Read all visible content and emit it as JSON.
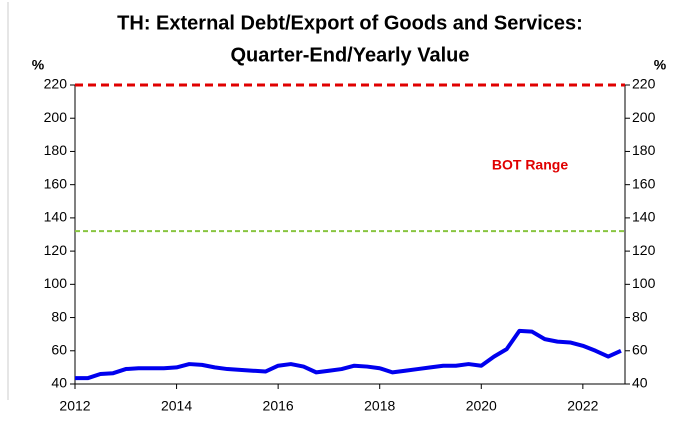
{
  "chart_data": {
    "type": "line",
    "title": [
      "TH: External Debt/Export of Goods and Services:",
      "Quarter-End/Yearly Value"
    ],
    "y_label": "%",
    "y2_label": "%",
    "annotation": "BOT Range",
    "x": [
      2012,
      2012.25,
      2012.5,
      2012.75,
      2013,
      2013.25,
      2013.5,
      2013.75,
      2014,
      2014.25,
      2014.5,
      2014.75,
      2015,
      2015.25,
      2015.5,
      2015.75,
      2016,
      2016.25,
      2016.5,
      2016.75,
      2017,
      2017.25,
      2017.5,
      2017.75,
      2018,
      2018.25,
      2018.5,
      2018.75,
      2019,
      2019.25,
      2019.5,
      2019.75,
      2020,
      2020.25,
      2020.5,
      2020.75,
      2021,
      2021.25,
      2021.5,
      2021.75,
      2022,
      2022.25,
      2022.5,
      2022.75
    ],
    "series": [
      {
        "color": "#0000ee",
        "values": [
          43.5,
          43.5,
          46,
          46.5,
          49,
          49.5,
          49.5,
          49.5,
          50,
          52,
          51.5,
          50,
          49,
          48.5,
          48,
          47.5,
          51,
          52,
          50.5,
          47,
          48,
          49,
          51,
          50.5,
          49.5,
          47,
          48,
          49,
          50,
          51,
          51,
          52,
          51,
          56.5,
          61,
          72,
          71.5,
          67,
          65.5,
          65,
          63,
          60,
          56.5,
          60
        ]
      }
    ],
    "ref_lines": [
      {
        "value": 220,
        "color": "#e00000"
      },
      {
        "value": 132,
        "color": "#88c540"
      }
    ],
    "xlim": [
      2012,
      2022.83
    ],
    "xticks": [
      2012,
      2014,
      2016,
      2018,
      2020,
      2022
    ],
    "ylim": [
      40,
      220
    ],
    "yticks": [
      40,
      60,
      80,
      100,
      120,
      140,
      160,
      180,
      200,
      220
    ],
    "y2lim": [
      40,
      220
    ],
    "y2ticks": [
      40,
      60,
      80,
      100,
      120,
      140,
      160,
      180,
      200,
      220
    ]
  }
}
